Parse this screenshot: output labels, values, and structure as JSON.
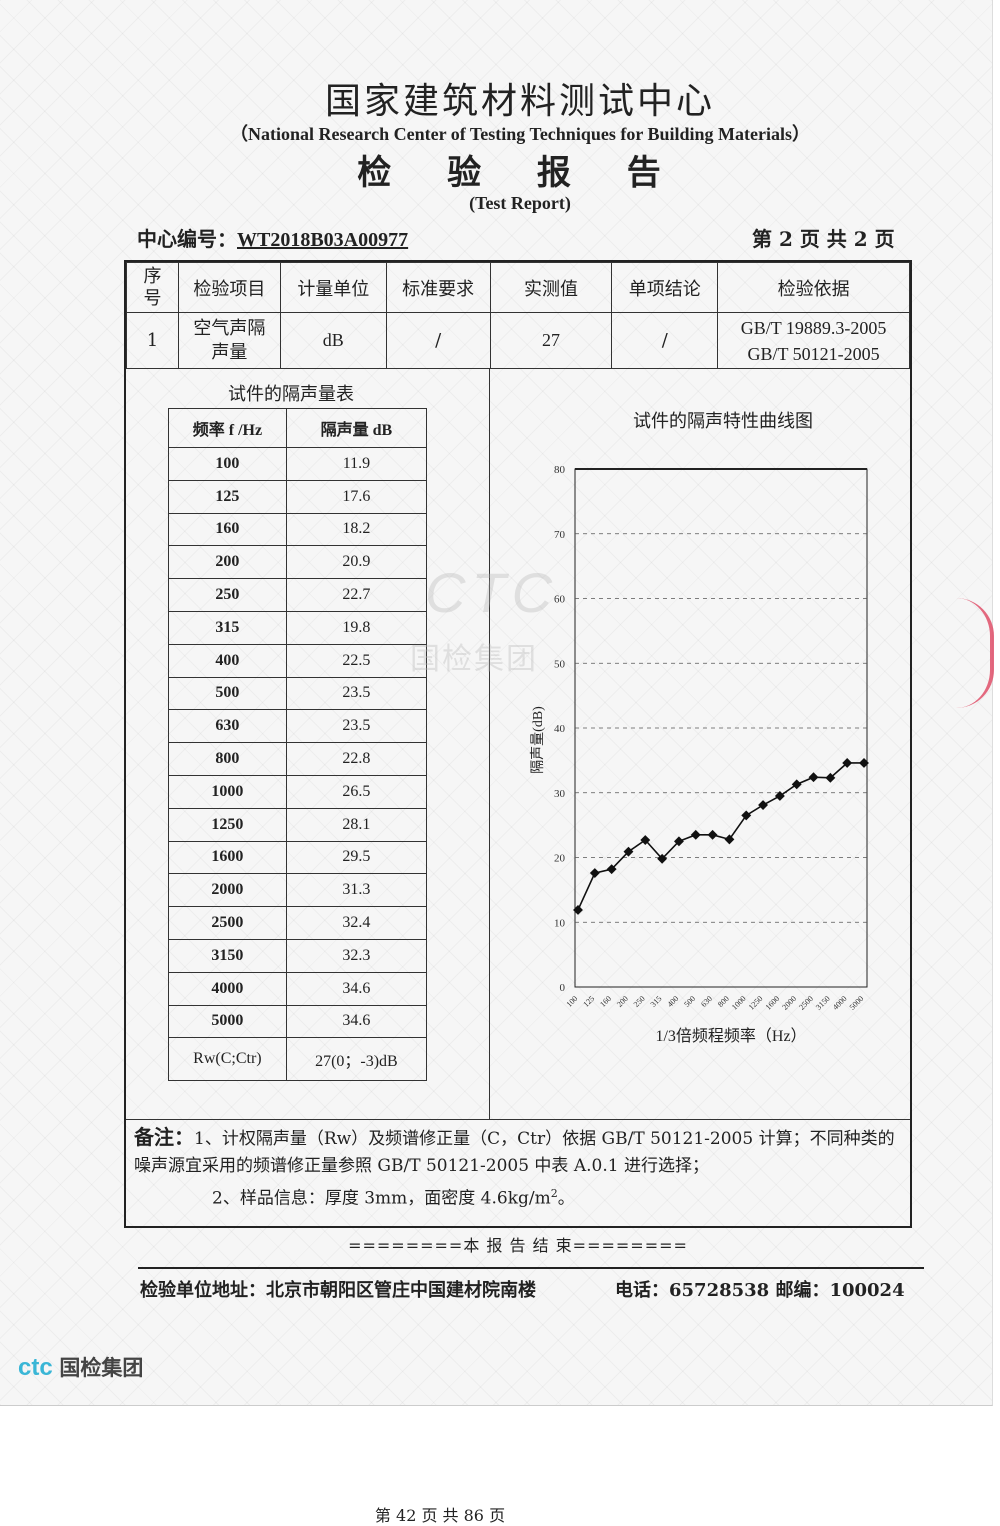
{
  "header": {
    "title_cn": "国家建筑材料测试中心",
    "title_en": "（National Research Center of Testing Techniques for Building Materials）",
    "report_cn": "检 验 报 告",
    "report_en": "(Test Report)",
    "center_no_label": "中心编号：",
    "center_no": "WT2018B03A00977",
    "page_info": "第 2 页  共 2 页"
  },
  "main_table": {
    "headers": [
      "序号",
      "检验项目",
      "计量单位",
      "标准要求",
      "实测值",
      "单项结论",
      "检验依据"
    ],
    "row": {
      "no": "1",
      "item": "空气声隔声量",
      "unit": "dB",
      "requirement": "/",
      "measured": "27",
      "conclusion": "/",
      "basis_1": "GB/T 19889.3-2005",
      "basis_2": "GB/T 50121-2005"
    }
  },
  "sound_table": {
    "title": "试件的隔声量表",
    "col_freq": "频率 f /Hz",
    "col_r": "隔声量 dB",
    "rows": [
      {
        "f": "100",
        "r": "11.9"
      },
      {
        "f": "125",
        "r": "17.6"
      },
      {
        "f": "160",
        "r": "18.2"
      },
      {
        "f": "200",
        "r": "20.9"
      },
      {
        "f": "250",
        "r": "22.7"
      },
      {
        "f": "315",
        "r": "19.8"
      },
      {
        "f": "400",
        "r": "22.5"
      },
      {
        "f": "500",
        "r": "23.5"
      },
      {
        "f": "630",
        "r": "23.5"
      },
      {
        "f": "800",
        "r": "22.8"
      },
      {
        "f": "1000",
        "r": "26.5"
      },
      {
        "f": "1250",
        "r": "28.1"
      },
      {
        "f": "1600",
        "r": "29.5"
      },
      {
        "f": "2000",
        "r": "31.3"
      },
      {
        "f": "2500",
        "r": "32.4"
      },
      {
        "f": "3150",
        "r": "32.3"
      },
      {
        "f": "4000",
        "r": "34.6"
      },
      {
        "f": "5000",
        "r": "34.6"
      }
    ],
    "rw_label": "Rw(C;Ctr)",
    "rw_value": "27(0；-3)dB"
  },
  "chart_data": {
    "type": "line",
    "title": "试件的隔声特性曲线图",
    "xlabel": "1/3倍频程频率（Hz）",
    "ylabel": "隔声量(dB)",
    "ylim": [
      0,
      80
    ],
    "yticks": [
      "0",
      "10",
      "20",
      "30",
      "40",
      "50",
      "60",
      "70",
      "80"
    ],
    "grid": true,
    "categories": [
      "100",
      "125",
      "160",
      "200",
      "250",
      "315",
      "400",
      "500",
      "630",
      "800",
      "1000",
      "1250",
      "1600",
      "2000",
      "2500",
      "3150",
      "4000",
      "5000"
    ],
    "series": [
      {
        "values": [
          11.9,
          17.6,
          18.2,
          20.9,
          22.7,
          19.8,
          22.5,
          23.5,
          23.5,
          22.8,
          26.5,
          28.1,
          29.5,
          31.3,
          32.4,
          32.3,
          34.6,
          34.6
        ]
      }
    ]
  },
  "notes": {
    "label": "备注：",
    "line1": "1、计权隔声量（Rw）及频谱修正量（C，Ctr）依据 GB/T 50121-2005 计算；不同种类的噪声源宜采用的频谱修正量参照 GB/T 50121-2005 中表 A.0.1 进行选择；",
    "line2_pre": "2、样品信息：厚度 3mm，面密度 4.6kg/m",
    "line2_sup": "2",
    "line2_post": "。"
  },
  "end_text": "========本 报 告 结 束========",
  "footer": {
    "address": "检验单位地址：北京市朝阳区管庄中国建材院南楼",
    "phone": "电话：65728538   邮编：100024"
  },
  "logo": {
    "mark": "ctc",
    "text": "国检集团"
  },
  "watermark": {
    "mark": "CTC",
    "text": "国检集团"
  },
  "page_footer": "第 42 页 共 86 页",
  "colors": {
    "stamp": "#e0506a",
    "logo": "#3ab6d6"
  }
}
